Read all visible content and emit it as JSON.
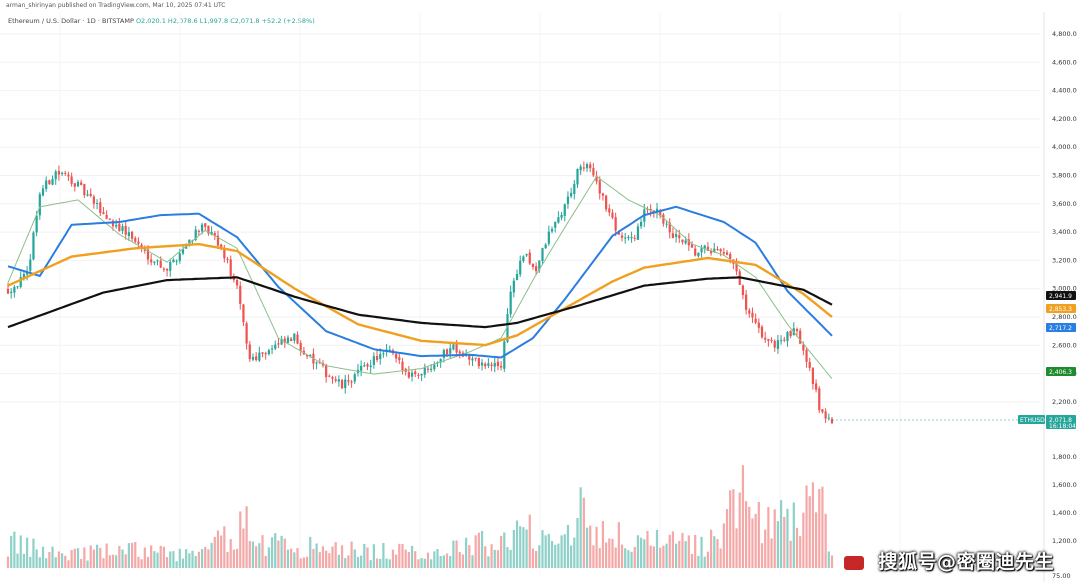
{
  "attribution": "arman_shirinyan published on TradingView.com, Mar 10, 2025 07:41 UTC",
  "legend": {
    "symbol": "Ethereum / U.S. Dollar · 1D · BITSTAMP",
    "ohlc": "O2,020.1 H2,078.6 L1,997.8 C2,071.8 +52.2 (+2.58%)"
  },
  "colors": {
    "up": "#26a69a",
    "down": "#ef5350",
    "ema_black": "#111111",
    "ema_orange": "#f0a020",
    "ema_blue": "#2a7de1",
    "ema_green": "#8bbf8b",
    "volume_up": "#8fd1c8",
    "volume_down": "#f4a9a8"
  },
  "watermark": "搜狐号@密圈迪先生",
  "price_labels": [
    {
      "name": "ema-black-label",
      "value": "2,941.9",
      "color": "#111111"
    },
    {
      "name": "ema-orange-label",
      "value": "2,853.3",
      "color": "#f0a020"
    },
    {
      "name": "ema-blue-label",
      "value": "2,717.2",
      "color": "#2a7de1"
    },
    {
      "name": "ema-green-label",
      "value": "2,406.3",
      "color": "#1e8c2e"
    },
    {
      "name": "last-price-label",
      "value": "2,071.8",
      "color": "#26a69a",
      "extra": "16:18:04"
    }
  ],
  "symbol_tag": "ETHUSD",
  "chart_data": {
    "type": "candlestick",
    "title": "Ethereum / U.S. Dollar · 1D · BITSTAMP",
    "y_ticks_price": [
      "4,800.0",
      "4,600.0",
      "4,400.0",
      "4,200.0",
      "4,000.0",
      "3,800.0",
      "3,600.0",
      "3,400.0",
      "3,200.0",
      "3,000.0",
      "2,800.0",
      "2,600.0",
      "2,400.0",
      "2,200.0"
    ],
    "y_ticks_volume": [
      "1,800.0",
      "1,600.0",
      "1,400.0",
      "1,200.0"
    ],
    "y_tick_bottom": "75.00",
    "ylim_price": [
      2050,
      4900
    ],
    "price_anchors": [
      [
        0,
        3050
      ],
      [
        6,
        3150
      ],
      [
        10,
        3750
      ],
      [
        15,
        3900
      ],
      [
        20,
        3850
      ],
      [
        26,
        3700
      ],
      [
        32,
        3550
      ],
      [
        38,
        3450
      ],
      [
        44,
        3300
      ],
      [
        50,
        3200
      ],
      [
        55,
        3350
      ],
      [
        60,
        3500
      ],
      [
        64,
        3450
      ],
      [
        68,
        3300
      ],
      [
        72,
        3050
      ],
      [
        76,
        2550
      ],
      [
        80,
        2600
      ],
      [
        85,
        2650
      ],
      [
        90,
        2700
      ],
      [
        95,
        2550
      ],
      [
        100,
        2450
      ],
      [
        105,
        2350
      ],
      [
        110,
        2450
      ],
      [
        115,
        2550
      ],
      [
        120,
        2600
      ],
      [
        125,
        2450
      ],
      [
        130,
        2450
      ],
      [
        135,
        2550
      ],
      [
        140,
        2650
      ],
      [
        145,
        2550
      ],
      [
        150,
        2500
      ],
      [
        155,
        2500
      ],
      [
        158,
        3050
      ],
      [
        162,
        3300
      ],
      [
        166,
        3200
      ],
      [
        170,
        3450
      ],
      [
        175,
        3650
      ],
      [
        180,
        3950
      ],
      [
        184,
        3900
      ],
      [
        188,
        3650
      ],
      [
        192,
        3450
      ],
      [
        196,
        3400
      ],
      [
        200,
        3600
      ],
      [
        204,
        3650
      ],
      [
        208,
        3450
      ],
      [
        212,
        3400
      ],
      [
        216,
        3300
      ],
      [
        220,
        3350
      ],
      [
        224,
        3300
      ],
      [
        228,
        3250
      ],
      [
        232,
        2900
      ],
      [
        236,
        2750
      ],
      [
        240,
        2650
      ],
      [
        244,
        2700
      ],
      [
        248,
        2750
      ],
      [
        252,
        2500
      ],
      [
        255,
        2200
      ],
      [
        259,
        2071.8
      ]
    ],
    "volume_anchors": [
      [
        0,
        0.2
      ],
      [
        8,
        0.15
      ],
      [
        20,
        0.12
      ],
      [
        40,
        0.14
      ],
      [
        60,
        0.1
      ],
      [
        75,
        0.35
      ],
      [
        80,
        0.2
      ],
      [
        100,
        0.15
      ],
      [
        130,
        0.12
      ],
      [
        155,
        0.22
      ],
      [
        165,
        0.3
      ],
      [
        175,
        0.28
      ],
      [
        180,
        0.45
      ],
      [
        190,
        0.25
      ],
      [
        200,
        0.2
      ],
      [
        220,
        0.18
      ],
      [
        230,
        0.55
      ],
      [
        240,
        0.3
      ],
      [
        250,
        0.5
      ],
      [
        255,
        0.6
      ],
      [
        259,
        0.1
      ]
    ],
    "ema_black": [
      [
        0,
        2780
      ],
      [
        30,
        3030
      ],
      [
        50,
        3120
      ],
      [
        72,
        3140
      ],
      [
        90,
        3000
      ],
      [
        110,
        2870
      ],
      [
        130,
        2810
      ],
      [
        150,
        2780
      ],
      [
        160,
        2810
      ],
      [
        180,
        2940
      ],
      [
        200,
        3080
      ],
      [
        220,
        3130
      ],
      [
        230,
        3140
      ],
      [
        250,
        3050
      ],
      [
        259,
        2941.9
      ]
    ],
    "ema_orange": [
      [
        0,
        3080
      ],
      [
        20,
        3290
      ],
      [
        40,
        3350
      ],
      [
        60,
        3380
      ],
      [
        72,
        3330
      ],
      [
        90,
        3060
      ],
      [
        110,
        2800
      ],
      [
        130,
        2680
      ],
      [
        150,
        2650
      ],
      [
        160,
        2720
      ],
      [
        180,
        2980
      ],
      [
        190,
        3110
      ],
      [
        200,
        3210
      ],
      [
        220,
        3280
      ],
      [
        235,
        3230
      ],
      [
        250,
        3020
      ],
      [
        259,
        2853.3
      ]
    ],
    "ema_blue": [
      [
        0,
        3220
      ],
      [
        10,
        3150
      ],
      [
        20,
        3520
      ],
      [
        35,
        3540
      ],
      [
        48,
        3590
      ],
      [
        60,
        3600
      ],
      [
        72,
        3430
      ],
      [
        85,
        3070
      ],
      [
        100,
        2750
      ],
      [
        115,
        2620
      ],
      [
        130,
        2570
      ],
      [
        145,
        2580
      ],
      [
        155,
        2560
      ],
      [
        165,
        2700
      ],
      [
        175,
        2980
      ],
      [
        190,
        3440
      ],
      [
        200,
        3590
      ],
      [
        210,
        3650
      ],
      [
        225,
        3540
      ],
      [
        235,
        3390
      ],
      [
        245,
        3040
      ],
      [
        259,
        2717.2
      ]
    ],
    "ema_green": [
      [
        0,
        3100
      ],
      [
        10,
        3650
      ],
      [
        22,
        3700
      ],
      [
        35,
        3450
      ],
      [
        50,
        3250
      ],
      [
        62,
        3480
      ],
      [
        72,
        3350
      ],
      [
        85,
        2700
      ],
      [
        100,
        2500
      ],
      [
        115,
        2440
      ],
      [
        130,
        2480
      ],
      [
        145,
        2600
      ],
      [
        155,
        2700
      ],
      [
        165,
        3120
      ],
      [
        175,
        3500
      ],
      [
        185,
        3870
      ],
      [
        195,
        3700
      ],
      [
        205,
        3590
      ],
      [
        215,
        3380
      ],
      [
        225,
        3300
      ],
      [
        235,
        3140
      ],
      [
        245,
        2800
      ],
      [
        259,
        2406.3
      ]
    ]
  }
}
